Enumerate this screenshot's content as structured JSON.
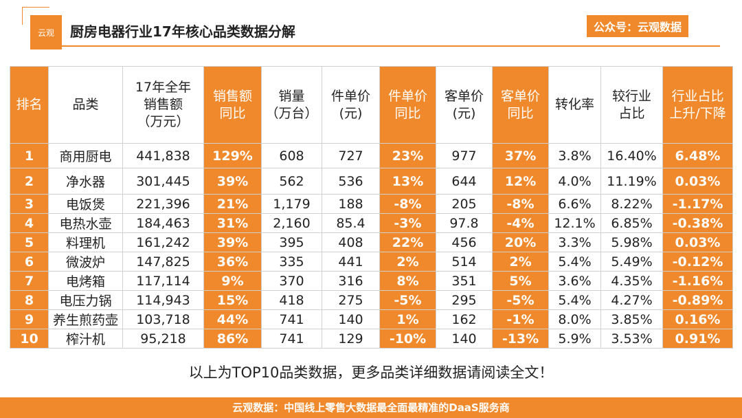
{
  "header": {
    "logo_text": "云观",
    "title": "厨房电器行业17年核心品类数据分解",
    "badge": "公众号：云观数据"
  },
  "table": {
    "columns": [
      {
        "label": "排名",
        "highlight": true
      },
      {
        "label": "品类",
        "highlight": false
      },
      {
        "label": "17年全年\n销售额\n（万元）",
        "highlight": false
      },
      {
        "label": "销售额\n同比",
        "highlight": true
      },
      {
        "label": "销量\n（万台）",
        "highlight": false
      },
      {
        "label": "件单价\n(元)",
        "highlight": false
      },
      {
        "label": "件单价\n同比",
        "highlight": true
      },
      {
        "label": "客单价\n(元)",
        "highlight": false
      },
      {
        "label": "客单价\n同比",
        "highlight": true
      },
      {
        "label": "转化率",
        "highlight": false
      },
      {
        "label": "较行业\n占比",
        "highlight": false
      },
      {
        "label": "行业占比\n上升/下降",
        "highlight": true
      }
    ],
    "rows": [
      [
        "1",
        "商用厨电",
        "441,838",
        "129%",
        "608",
        "727",
        "23%",
        "977",
        "37%",
        "3.8%",
        "16.40%",
        "6.48%"
      ],
      [
        "2",
        "净水器",
        "301,445",
        "39%",
        "562",
        "536",
        "13%",
        "644",
        "12%",
        "4.0%",
        "11.19%",
        "0.03%"
      ],
      [
        "3",
        "电饭煲",
        "221,396",
        "21%",
        "1,179",
        "188",
        "-8%",
        "205",
        "-8%",
        "6.6%",
        "8.22%",
        "-1.17%"
      ],
      [
        "4",
        "电热水壶",
        "184,463",
        "31%",
        "2,160",
        "85.4",
        "-3%",
        "97.8",
        "-4%",
        "12.1%",
        "6.85%",
        "-0.38%"
      ],
      [
        "5",
        "料理机",
        "161,242",
        "39%",
        "395",
        "408",
        "22%",
        "456",
        "20%",
        "3.3%",
        "5.98%",
        "0.03%"
      ],
      [
        "6",
        "微波炉",
        "147,825",
        "36%",
        "335",
        "441",
        "2%",
        "514",
        "2%",
        "5.4%",
        "5.49%",
        "-0.12%"
      ],
      [
        "7",
        "电烤箱",
        "117,114",
        "9%",
        "370",
        "316",
        "8%",
        "351",
        "5%",
        "3.6%",
        "4.35%",
        "-1.16%"
      ],
      [
        "8",
        "电压力锅",
        "114,943",
        "15%",
        "418",
        "275",
        "-5%",
        "295",
        "-5%",
        "5.4%",
        "4.27%",
        "-0.89%"
      ],
      [
        "9",
        "养生煎药壶",
        "103,718",
        "44%",
        "741",
        "140",
        "1%",
        "162",
        "-1%",
        "8.0%",
        "3.85%",
        "0.16%"
      ],
      [
        "10",
        "榨汁机",
        "95,218",
        "86%",
        "741",
        "129",
        "-10%",
        "140",
        "-13%",
        "5.9%",
        "3.53%",
        "0.91%"
      ]
    ]
  },
  "note": "以上为TOP10品类数据，更多品类详细数据请阅读全文！",
  "footer": "云观数据：中国线上零售大数据最全面最精准的DaaS服务商",
  "colors": {
    "accent": "#f0892b"
  }
}
